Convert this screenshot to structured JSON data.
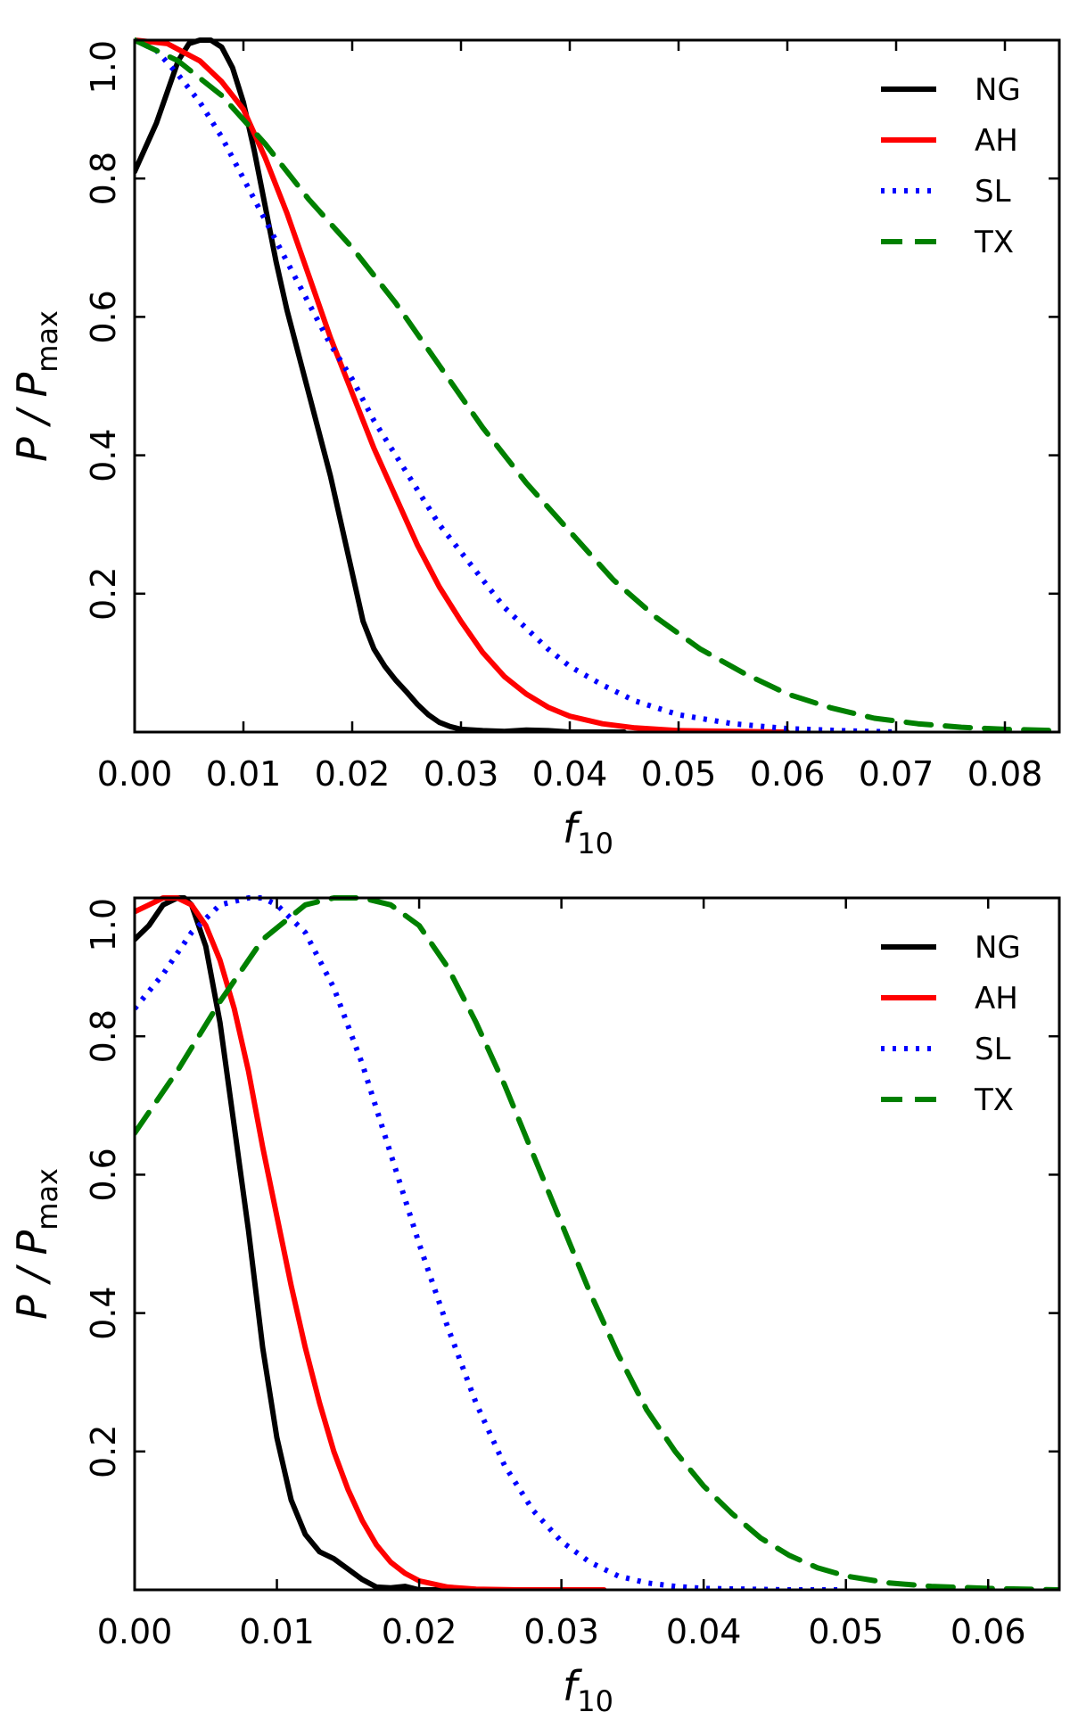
{
  "chart_data": [
    {
      "type": "line",
      "xlabel": "f",
      "xlabel_sub": "10",
      "ylabel": "P / P",
      "ylabel_sub": "max",
      "xlim": [
        0,
        0.085
      ],
      "ylim": [
        0,
        1.0
      ],
      "xticks": [
        0.0,
        0.01,
        0.02,
        0.03,
        0.04,
        0.05,
        0.06,
        0.07,
        0.08
      ],
      "xtick_labels": [
        "0.00",
        "0.01",
        "0.02",
        "0.03",
        "0.04",
        "0.05",
        "0.06",
        "0.07",
        "0.08"
      ],
      "yticks": [
        0.2,
        0.4,
        0.6,
        0.8,
        1.0
      ],
      "ytick_labels": [
        "0.2",
        "0.4",
        "0.6",
        "0.8",
        "1.0"
      ],
      "legend_position": "top-right",
      "series": [
        {
          "name": "NG",
          "color": "#000000",
          "style": "solid",
          "x": [
            0,
            0.002,
            0.004,
            0.005,
            0.006,
            0.007,
            0.008,
            0.009,
            0.01,
            0.011,
            0.012,
            0.013,
            0.014,
            0.015,
            0.016,
            0.017,
            0.018,
            0.019,
            0.02,
            0.021,
            0.022,
            0.023,
            0.024,
            0.025,
            0.026,
            0.027,
            0.028,
            0.029,
            0.03,
            0.032,
            0.034,
            0.036,
            0.038,
            0.04,
            0.045
          ],
          "y": [
            0.81,
            0.88,
            0.97,
            0.995,
            1.0,
            1.0,
            0.99,
            0.96,
            0.91,
            0.84,
            0.76,
            0.68,
            0.61,
            0.55,
            0.49,
            0.43,
            0.37,
            0.3,
            0.23,
            0.16,
            0.12,
            0.095,
            0.075,
            0.058,
            0.04,
            0.025,
            0.014,
            0.008,
            0.004,
            0.002,
            0.001,
            0.003,
            0.002,
            0.0,
            0.0
          ]
        },
        {
          "name": "AH",
          "color": "#ff0000",
          "style": "solid",
          "x": [
            0,
            0.003,
            0.006,
            0.008,
            0.01,
            0.012,
            0.014,
            0.016,
            0.018,
            0.02,
            0.022,
            0.024,
            0.026,
            0.028,
            0.03,
            0.032,
            0.034,
            0.036,
            0.038,
            0.04,
            0.043,
            0.046,
            0.05,
            0.055,
            0.06
          ],
          "y": [
            1.0,
            0.995,
            0.97,
            0.94,
            0.9,
            0.83,
            0.75,
            0.66,
            0.57,
            0.49,
            0.41,
            0.34,
            0.27,
            0.21,
            0.16,
            0.115,
            0.08,
            0.055,
            0.036,
            0.023,
            0.012,
            0.006,
            0.002,
            0.001,
            0.0
          ]
        },
        {
          "name": "SL",
          "color": "#0000ff",
          "style": "dotted",
          "x": [
            0,
            0.002,
            0.004,
            0.006,
            0.008,
            0.01,
            0.012,
            0.014,
            0.016,
            0.018,
            0.02,
            0.022,
            0.024,
            0.026,
            0.028,
            0.03,
            0.032,
            0.034,
            0.036,
            0.038,
            0.04,
            0.043,
            0.046,
            0.05,
            0.055,
            0.06,
            0.065,
            0.07
          ],
          "y": [
            1.0,
            0.985,
            0.95,
            0.91,
            0.86,
            0.8,
            0.74,
            0.68,
            0.62,
            0.56,
            0.51,
            0.45,
            0.4,
            0.35,
            0.3,
            0.26,
            0.22,
            0.18,
            0.15,
            0.12,
            0.095,
            0.068,
            0.045,
            0.025,
            0.012,
            0.005,
            0.002,
            0.0
          ]
        },
        {
          "name": "TX",
          "color": "#008000",
          "style": "dashed",
          "x": [
            0,
            0.004,
            0.008,
            0.012,
            0.016,
            0.02,
            0.024,
            0.028,
            0.032,
            0.036,
            0.04,
            0.044,
            0.048,
            0.052,
            0.056,
            0.06,
            0.064,
            0.068,
            0.072,
            0.076,
            0.08,
            0.085
          ],
          "y": [
            1.0,
            0.97,
            0.92,
            0.85,
            0.77,
            0.7,
            0.62,
            0.53,
            0.44,
            0.36,
            0.29,
            0.22,
            0.165,
            0.12,
            0.085,
            0.055,
            0.035,
            0.02,
            0.012,
            0.007,
            0.004,
            0.002
          ]
        }
      ]
    },
    {
      "type": "line",
      "xlabel": "f",
      "xlabel_sub": "10",
      "ylabel": "P / P",
      "ylabel_sub": "max",
      "xlim": [
        0,
        0.065
      ],
      "ylim": [
        0,
        1.0
      ],
      "xticks": [
        0.0,
        0.01,
        0.02,
        0.03,
        0.04,
        0.05,
        0.06
      ],
      "xtick_labels": [
        "0.00",
        "0.01",
        "0.02",
        "0.03",
        "0.04",
        "0.05",
        "0.06"
      ],
      "yticks": [
        0.2,
        0.4,
        0.6,
        0.8,
        1.0
      ],
      "ytick_labels": [
        "0.2",
        "0.4",
        "0.6",
        "0.8",
        "1.0"
      ],
      "legend_position": "top-right",
      "series": [
        {
          "name": "NG",
          "color": "#000000",
          "style": "solid",
          "x": [
            0,
            0.001,
            0.002,
            0.003,
            0.0035,
            0.004,
            0.005,
            0.006,
            0.007,
            0.008,
            0.009,
            0.01,
            0.011,
            0.012,
            0.013,
            0.014,
            0.015,
            0.016,
            0.017,
            0.018,
            0.019,
            0.02,
            0.022
          ],
          "y": [
            0.94,
            0.96,
            0.99,
            1.0,
            1.0,
            0.99,
            0.93,
            0.82,
            0.67,
            0.52,
            0.35,
            0.22,
            0.13,
            0.08,
            0.055,
            0.045,
            0.03,
            0.015,
            0.004,
            0.003,
            0.005,
            0.0,
            0.0
          ]
        },
        {
          "name": "AH",
          "color": "#ff0000",
          "style": "solid",
          "x": [
            0,
            0.001,
            0.002,
            0.003,
            0.004,
            0.005,
            0.006,
            0.007,
            0.008,
            0.009,
            0.01,
            0.011,
            0.012,
            0.013,
            0.014,
            0.015,
            0.016,
            0.017,
            0.018,
            0.019,
            0.02,
            0.022,
            0.024,
            0.027,
            0.03,
            0.033
          ],
          "y": [
            0.98,
            0.99,
            1.0,
            1.0,
            0.99,
            0.96,
            0.91,
            0.84,
            0.75,
            0.64,
            0.54,
            0.44,
            0.35,
            0.27,
            0.2,
            0.145,
            0.1,
            0.065,
            0.04,
            0.024,
            0.013,
            0.004,
            0.001,
            0.0,
            0.0,
            0.0
          ]
        },
        {
          "name": "SL",
          "color": "#0000ff",
          "style": "dotted",
          "x": [
            0,
            0.002,
            0.004,
            0.006,
            0.008,
            0.009,
            0.01,
            0.012,
            0.014,
            0.016,
            0.018,
            0.02,
            0.022,
            0.024,
            0.026,
            0.028,
            0.03,
            0.032,
            0.034,
            0.036,
            0.038,
            0.04,
            0.043,
            0.046,
            0.05
          ],
          "y": [
            0.84,
            0.89,
            0.95,
            0.99,
            1.0,
            1.0,
            0.99,
            0.95,
            0.87,
            0.76,
            0.63,
            0.5,
            0.38,
            0.27,
            0.18,
            0.115,
            0.07,
            0.04,
            0.02,
            0.01,
            0.005,
            0.002,
            0.001,
            0.0,
            0.0
          ]
        },
        {
          "name": "TX",
          "color": "#008000",
          "style": "dashed",
          "x": [
            0,
            0.003,
            0.006,
            0.009,
            0.012,
            0.014,
            0.016,
            0.018,
            0.02,
            0.022,
            0.024,
            0.026,
            0.028,
            0.03,
            0.032,
            0.034,
            0.036,
            0.038,
            0.04,
            0.042,
            0.044,
            0.046,
            0.048,
            0.05,
            0.053,
            0.056,
            0.06,
            0.065
          ],
          "y": [
            0.66,
            0.75,
            0.85,
            0.94,
            0.99,
            1.0,
            1.0,
            0.99,
            0.96,
            0.9,
            0.82,
            0.73,
            0.63,
            0.53,
            0.43,
            0.34,
            0.26,
            0.2,
            0.15,
            0.11,
            0.075,
            0.05,
            0.032,
            0.02,
            0.01,
            0.005,
            0.002,
            0.0
          ]
        }
      ]
    }
  ]
}
